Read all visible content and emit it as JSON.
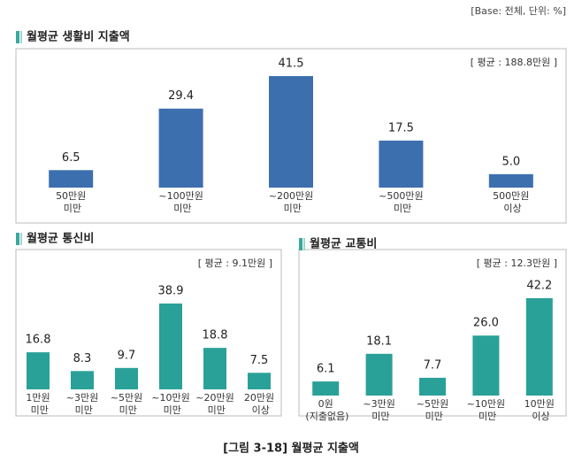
{
  "base_note": "[Base: 전체, 단위: %]",
  "caption": "[그림 3-18] 월평균 지출액",
  "chart_data": [
    {
      "type": "bar",
      "title": "월평균 생활비 지출액",
      "average": "[ 평균 : 188.8만원 ]",
      "categories": [
        "50만원 미만",
        "~100만원 미만",
        "~200만원 미만",
        "~500만원 미만",
        "500만원 이상"
      ],
      "values": [
        6.5,
        29.4,
        41.5,
        17.5,
        5.0
      ],
      "value_labels": [
        "6.5",
        "29.4",
        "41.5",
        "17.5",
        "5.0"
      ],
      "color": "#3c6fae"
    },
    {
      "type": "bar",
      "title": "월평균 통신비",
      "average": "[ 평균 : 9.1만원 ]",
      "categories": [
        "1만원 미만",
        "~3만원 미만",
        "~5만원 미만",
        "~10만원 미만",
        "~20만원 미만",
        "20만원 이상"
      ],
      "values": [
        16.8,
        8.3,
        9.7,
        38.9,
        18.8,
        7.5
      ],
      "value_labels": [
        "16.8",
        "8.3",
        "9.7",
        "38.9",
        "18.8",
        "7.5"
      ],
      "color": "#2aa198"
    },
    {
      "type": "bar",
      "title": "월평균 교통비",
      "average": "[ 평균 : 12.3만원 ]",
      "categories": [
        "0원 (지출없음)",
        "~3만원 미만",
        "~5만원 미만",
        "~10만원 미만",
        "10만원 이상"
      ],
      "values": [
        6.1,
        18.1,
        7.7,
        26.0,
        42.2
      ],
      "value_labels": [
        "6.1",
        "18.1",
        "7.7",
        "26.0",
        "42.2"
      ],
      "color": "#2aa198"
    }
  ]
}
